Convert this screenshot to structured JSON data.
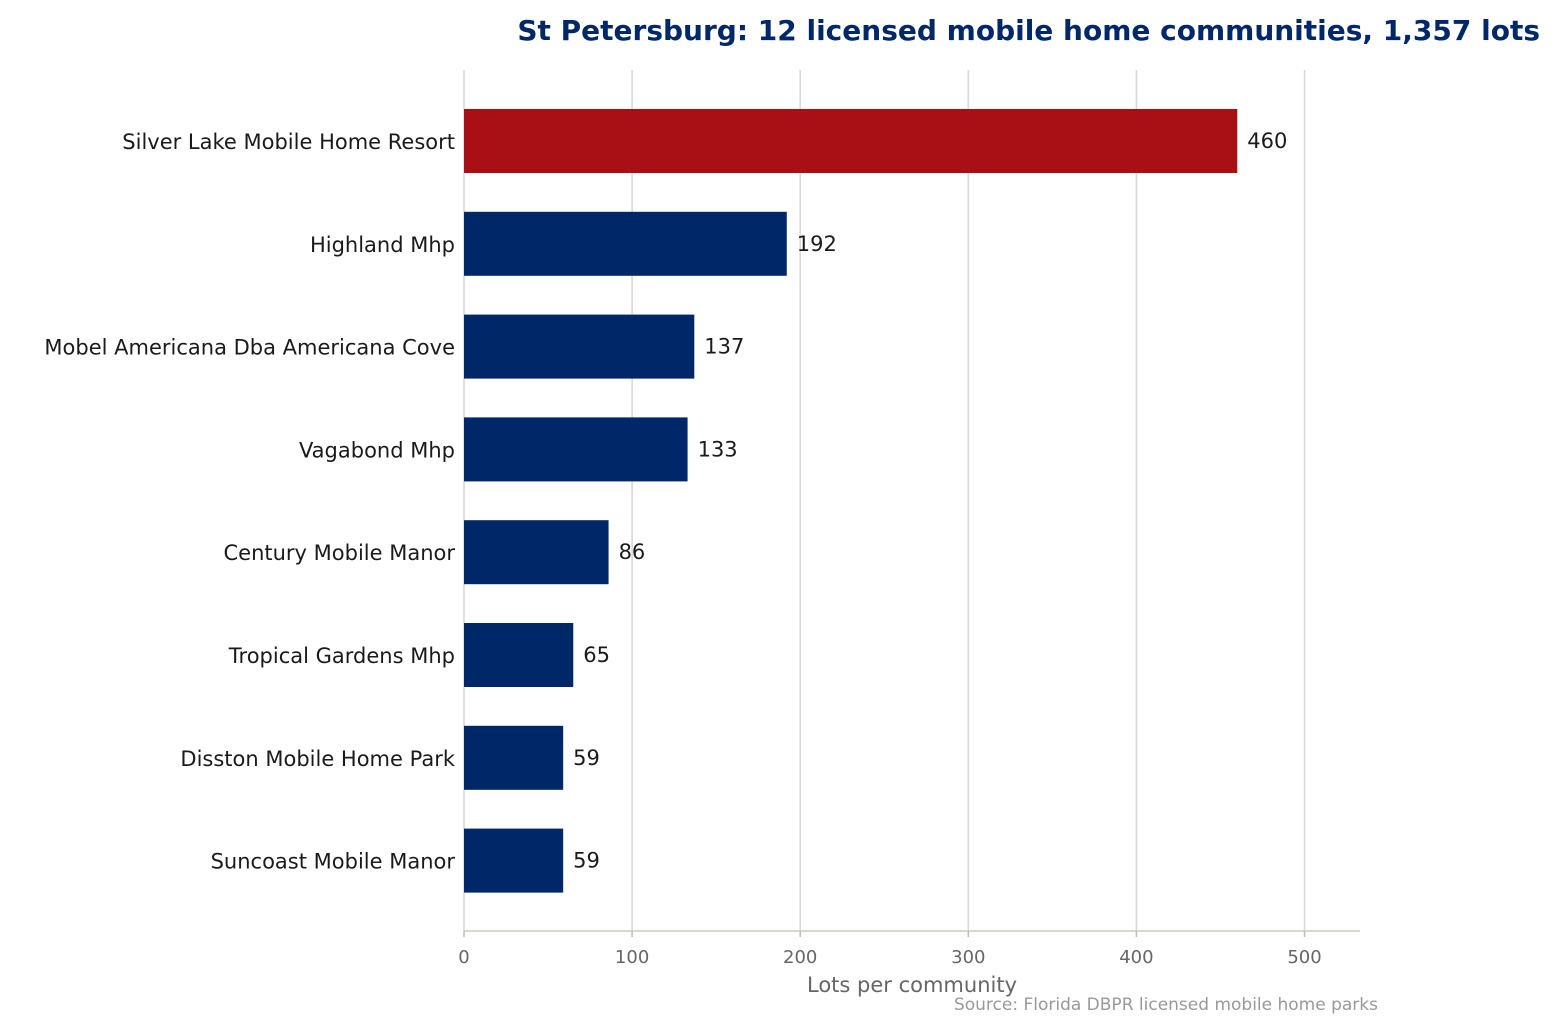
{
  "chart_data": {
    "type": "bar",
    "orientation": "horizontal",
    "title": "St Petersburg: 12 licensed mobile home communities, 1,357 lots",
    "xlabel": "Lots per community",
    "ylabel": "",
    "categories": [
      "Silver Lake Mobile Home Resort",
      "Highland Mhp",
      "Mobel Americana Dba Americana Cove",
      "Vagabond Mhp",
      "Century Mobile Manor",
      "Tropical Gardens Mhp",
      "Disston Mobile Home Park",
      "Suncoast Mobile Manor"
    ],
    "values": [
      460,
      192,
      137,
      133,
      86,
      65,
      59,
      59
    ],
    "value_labels": [
      "460",
      "192",
      "137",
      "133",
      "86",
      "65",
      "59",
      "59"
    ],
    "highlight_index": 0,
    "xlim": [
      0,
      533
    ],
    "xticks": [
      0,
      100,
      200,
      300,
      400,
      500
    ],
    "xtick_labels": [
      "0",
      "100",
      "200",
      "300",
      "400",
      "500"
    ],
    "grid": "vertical",
    "legend": "none",
    "source": "Source: Florida DBPR licensed mobile home parks",
    "colors": {
      "highlight": "#a81016",
      "bar": "#002868",
      "title": "#002868",
      "grid": "#d9d9d9",
      "axis": "#d8d8cc"
    }
  }
}
